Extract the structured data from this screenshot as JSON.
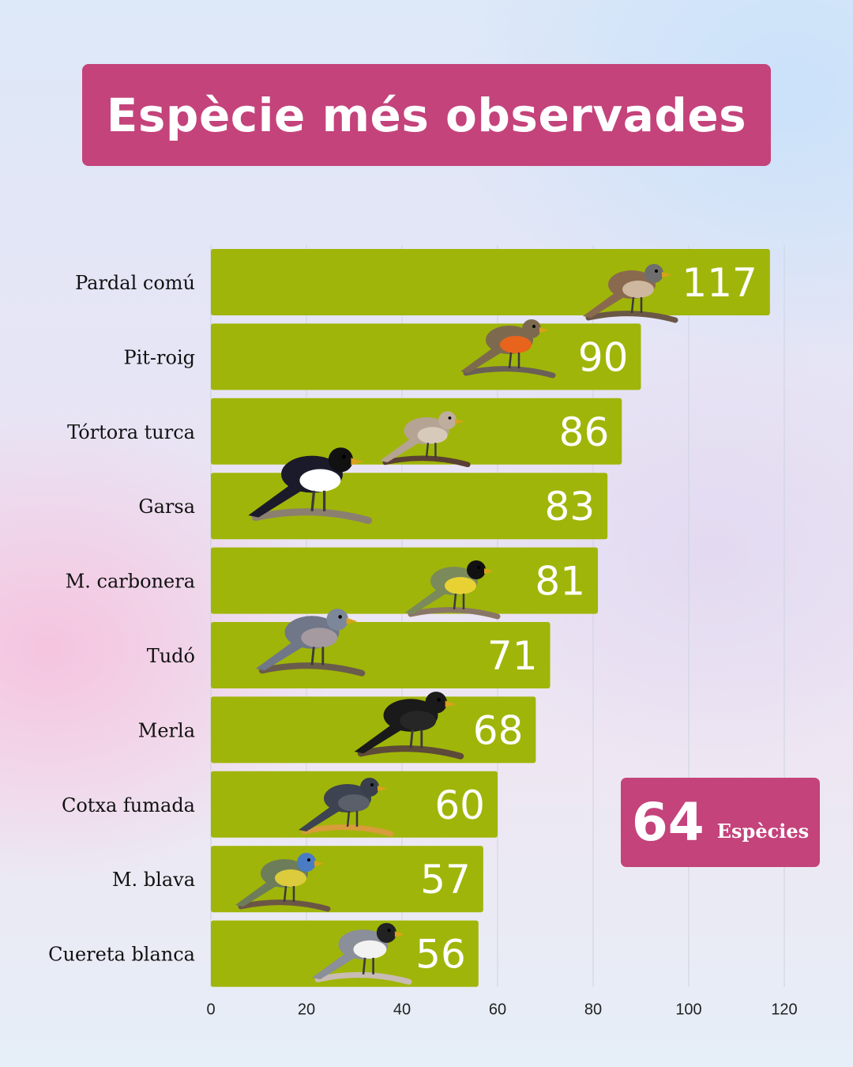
{
  "title": "Espècie més observades",
  "badge": {
    "value": "64",
    "label": "Espècies"
  },
  "chart_data": {
    "type": "bar",
    "orientation": "horizontal",
    "title": "Espècie més observades",
    "xlabel": "",
    "ylabel": "",
    "xlim": [
      0,
      120
    ],
    "grid": true,
    "categories": [
      "Pardal comú",
      "Pit-roig",
      "Tórtora turca",
      "Garsa",
      "M. carbonera",
      "Tudó",
      "Merla",
      "Cotxa fumada",
      "M. blava",
      "Cuereta blanca"
    ],
    "values": [
      117,
      90,
      86,
      83,
      81,
      71,
      68,
      60,
      57,
      56
    ],
    "xticks": [
      "0",
      "20",
      "40",
      "60",
      "80",
      "100",
      "120"
    ],
    "bar_color": "#a0b509",
    "label_color": "#ffffff",
    "icons": [
      "sparrow-icon",
      "robin-icon",
      "dove-icon",
      "magpie-icon",
      "great-tit-icon",
      "wood-pigeon-icon",
      "blackbird-icon",
      "black-redstart-icon",
      "blue-tit-icon",
      "wagtail-icon"
    ]
  }
}
